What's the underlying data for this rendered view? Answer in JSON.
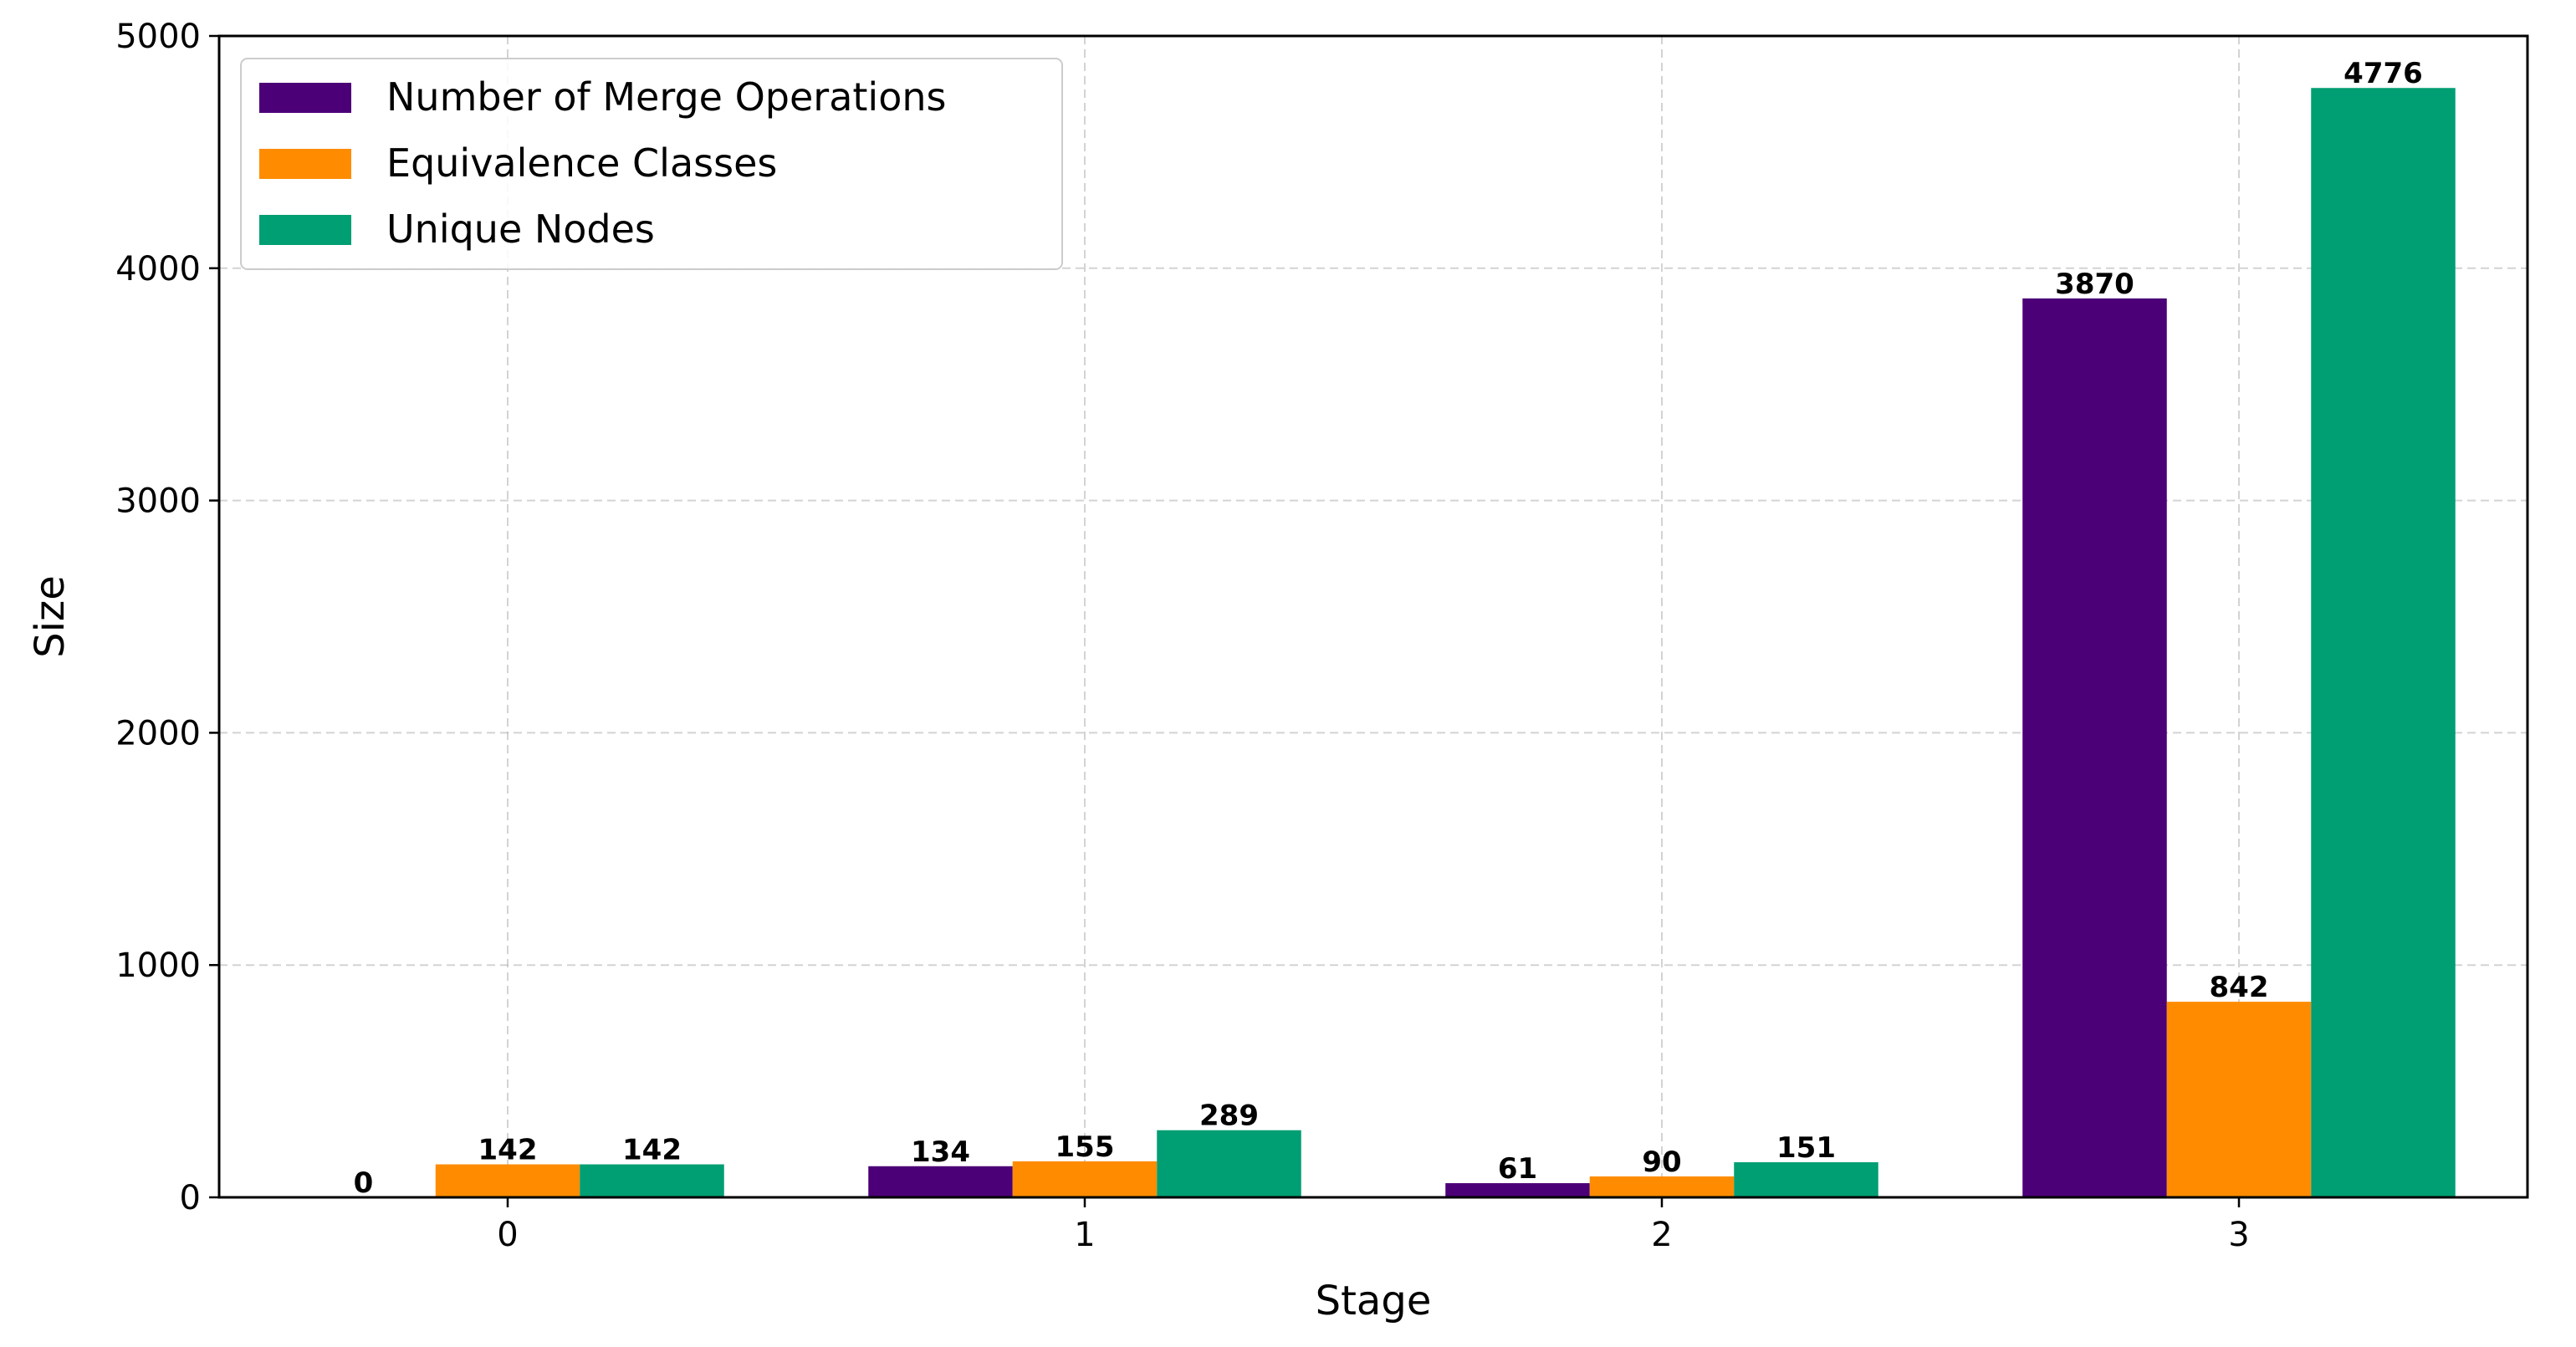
{
  "chart_data": {
    "type": "bar",
    "title": "",
    "xlabel": "Stage",
    "ylabel": "Size",
    "categories": [
      "0",
      "1",
      "2",
      "3"
    ],
    "series": [
      {
        "name": "Number of Merge Operations",
        "color": "#4b0077",
        "values": [
          0,
          134,
          61,
          3870
        ]
      },
      {
        "name": "Equivalence Classes",
        "color": "#ff8c00",
        "values": [
          142,
          155,
          90,
          842
        ]
      },
      {
        "name": "Unique Nodes",
        "color": "#009e73",
        "values": [
          142,
          289,
          151,
          4776
        ]
      }
    ],
    "ylim": [
      0,
      5000
    ],
    "yticks": [
      "0",
      "1000",
      "2000",
      "3000",
      "4000",
      "5000"
    ],
    "grid": true,
    "legend_position": "top-left"
  }
}
